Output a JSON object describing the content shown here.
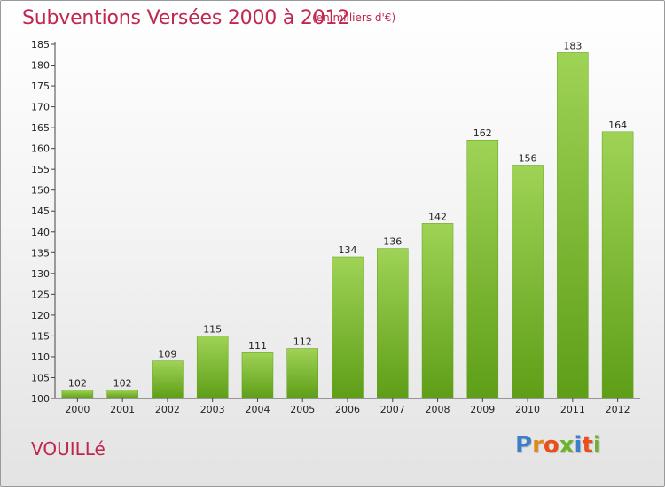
{
  "header": {
    "title": "Subventions Versées 2000 à 2012",
    "subtitle": "(en milliers d'€)"
  },
  "footer": {
    "commune": "VOUILLé",
    "logo_letters": [
      "P",
      "r",
      "o",
      "x",
      "i",
      "t",
      "i"
    ],
    "logo_colors": [
      "#3a7fc8",
      "#e08a1c",
      "#e94e1b",
      "#6ab42d",
      "#3a7fc8",
      "#e94e1b",
      "#6ab42d"
    ]
  },
  "colors": {
    "bar_light": "#9fd356",
    "bar_dark": "#5e9e17",
    "axis": "#444444",
    "grid": "#bbbbbb",
    "accent": "#c0264f"
  },
  "chart_data": {
    "type": "bar",
    "categories": [
      "2000",
      "2001",
      "2002",
      "2003",
      "2004",
      "2005",
      "2006",
      "2007",
      "2008",
      "2009",
      "2010",
      "2011",
      "2012"
    ],
    "values": [
      102,
      102,
      109,
      115,
      111,
      112,
      134,
      136,
      142,
      162,
      156,
      183,
      164
    ],
    "title": "Subventions Versées 2000 à 2012",
    "ylim": [
      100,
      185
    ],
    "yticks": [
      100,
      105,
      110,
      115,
      120,
      125,
      130,
      135,
      140,
      145,
      150,
      155,
      160,
      165,
      170,
      175,
      180,
      185
    ],
    "grid": false,
    "data_labels": true
  }
}
